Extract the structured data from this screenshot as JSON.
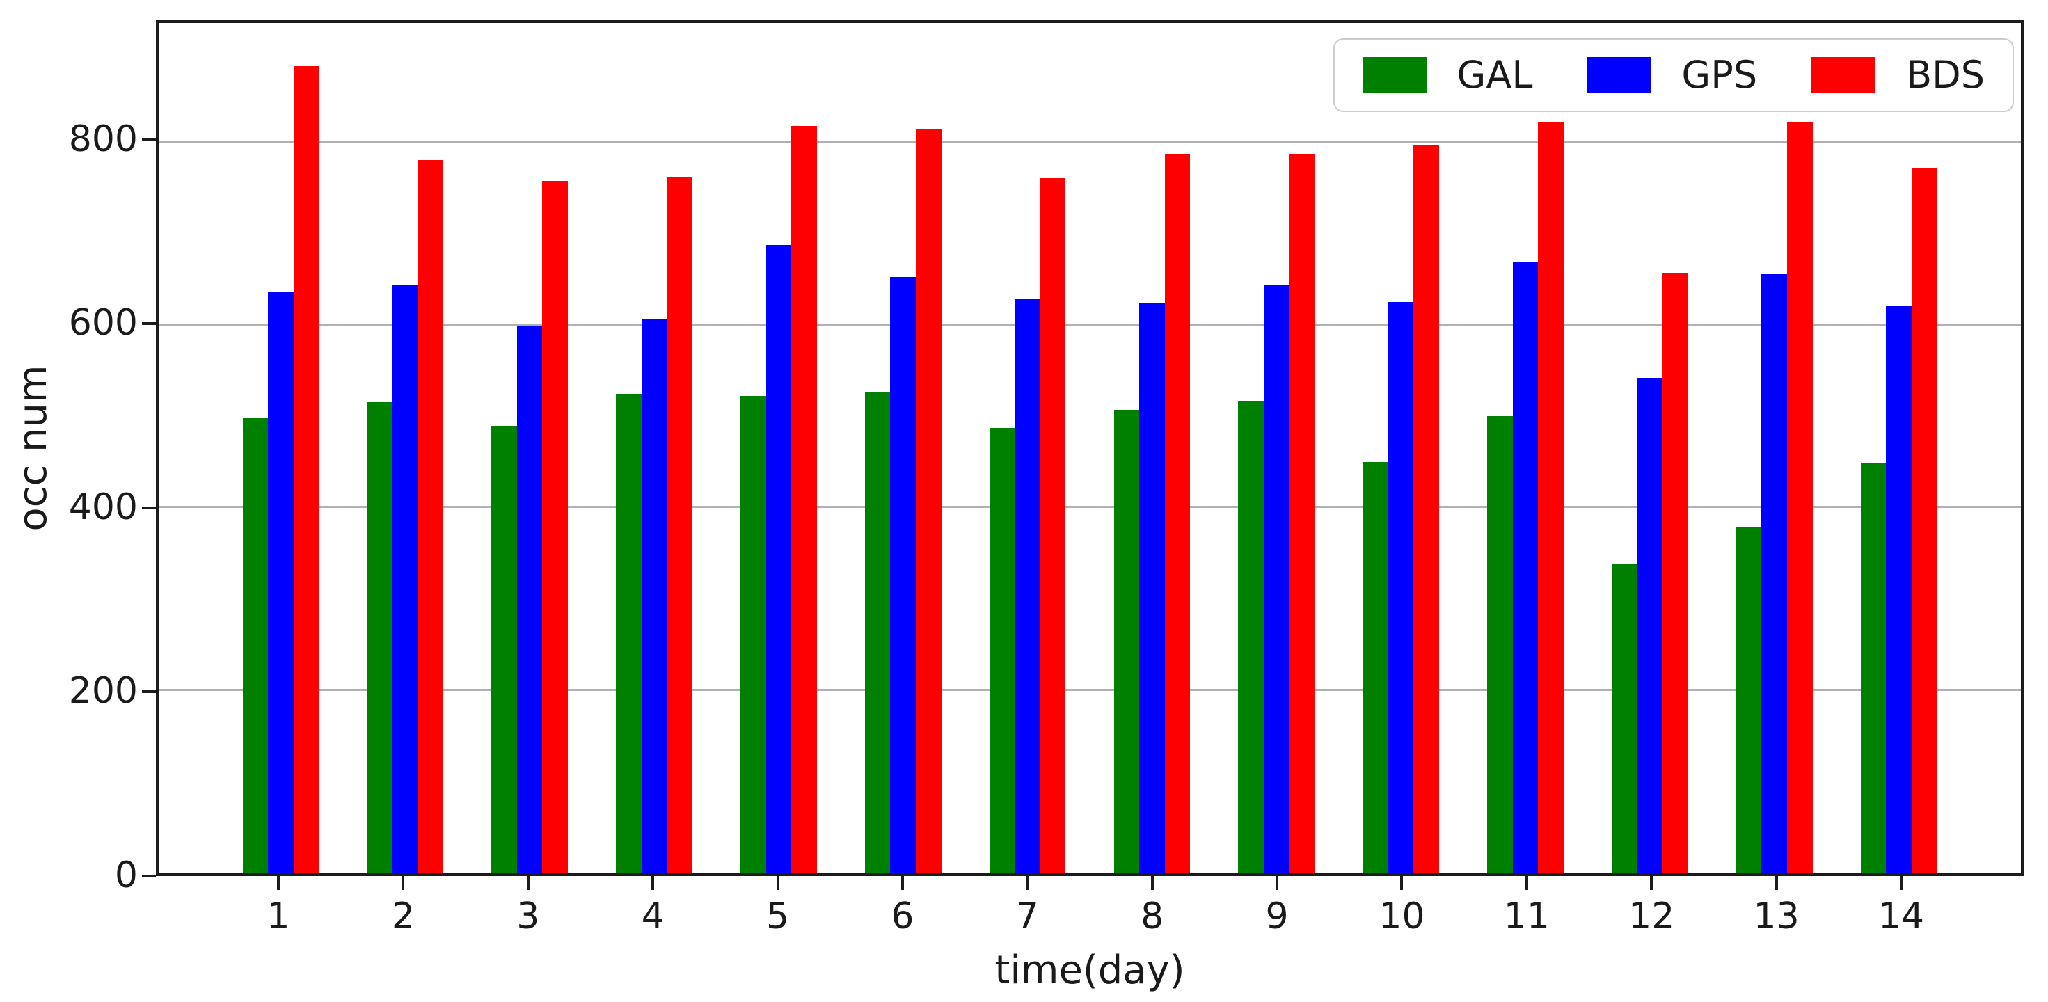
{
  "chart_data": {
    "type": "bar",
    "title": "",
    "xlabel": "time(day)",
    "ylabel": "occ num",
    "categories": [
      "1",
      "2",
      "3",
      "4",
      "5",
      "6",
      "7",
      "8",
      "9",
      "10",
      "11",
      "12",
      "13",
      "14"
    ],
    "series": [
      {
        "name": "GAL",
        "color": "#008000",
        "values": [
          498,
          515,
          489,
          524,
          522,
          527,
          487,
          507,
          517,
          450,
          500,
          339,
          378,
          449
        ]
      },
      {
        "name": "GPS",
        "color": "#0000ff",
        "values": [
          636,
          644,
          598,
          606,
          687,
          652,
          629,
          623,
          643,
          625,
          668,
          542,
          655,
          620
        ]
      },
      {
        "name": "BDS",
        "color": "#ff0000",
        "values": [
          883,
          780,
          757,
          762,
          817,
          814,
          760,
          787,
          787,
          796,
          822,
          656,
          822,
          771
        ]
      }
    ],
    "yticks": [
      0,
      200,
      400,
      600,
      800
    ],
    "ylim": [
      0,
      930
    ],
    "grid": "horizontal",
    "grid_color": "#b0b0b0",
    "legend_position": "top-right",
    "legend_entries": [
      "GAL",
      "GPS",
      "BDS"
    ]
  }
}
